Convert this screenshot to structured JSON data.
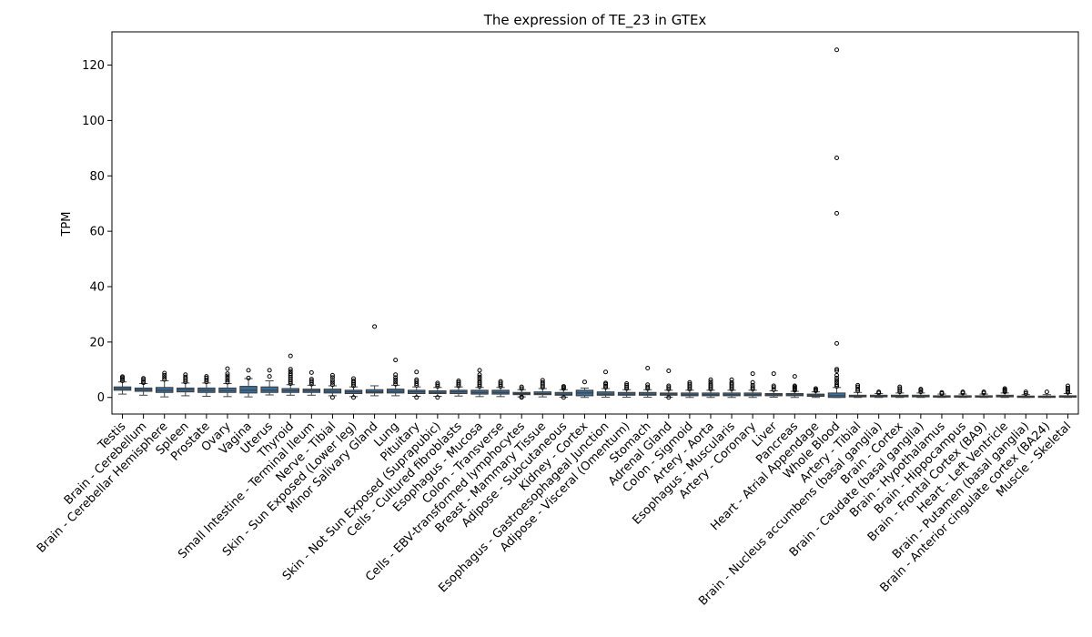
{
  "chart_data": {
    "type": "box",
    "title": "The expression of TE_23 in GTEx",
    "xlabel": "",
    "ylabel": "TPM",
    "ylim": [
      -6,
      132
    ],
    "yticks": [
      0,
      20,
      40,
      60,
      80,
      100,
      120
    ],
    "grid": false,
    "box_color": "#3b6e9a",
    "categories": [
      "Testis",
      "Brain - Cerebellum",
      "Brain - Cerebellar Hemisphere",
      "Spleen",
      "Prostate",
      "Ovary",
      "Vagina",
      "Uterus",
      "Thyroid",
      "Small Intestine - Terminal Ileum",
      "Nerve - Tibial",
      "Skin - Sun Exposed (Lower leg)",
      "Minor Salivary Gland",
      "Lung",
      "Pituitary",
      "Skin - Not Sun Exposed (Suprapubic)",
      "Cells - Cultured fibroblasts",
      "Esophagus - Mucosa",
      "Colon - Transverse",
      "Cells - EBV-transformed lymphocytes",
      "Breast - Mammary Tissue",
      "Adipose - Subcutaneous",
      "Kidney - Cortex",
      "Esophagus - Gastroesophageal Junction",
      "Adipose - Visceral (Omentum)",
      "Stomach",
      "Adrenal Gland",
      "Colon - Sigmoid",
      "Artery - Aorta",
      "Esophagus - Muscularis",
      "Artery - Coronary",
      "Liver",
      "Pancreas",
      "Heart - Atrial Appendage",
      "Whole Blood",
      "Artery - Tibial",
      "Brain - Nucleus accumbens (basal ganglia)",
      "Brain - Cortex",
      "Brain - Caudate (basal ganglia)",
      "Brain - Hypothalamus",
      "Brain - Hippocampus",
      "Brain - Frontal Cortex (BA9)",
      "Heart - Left Ventricle",
      "Brain - Putamen (basal ganglia)",
      "Brain - Anterior cingulate cortex (BA24)",
      "Muscle - Skeletal"
    ],
    "boxes": [
      {
        "q1": 2.6,
        "median": 3.2,
        "q3": 3.8,
        "whislo": 1.2,
        "whishi": 5.6,
        "fliers": [
          6.0,
          6.6,
          7.1,
          7.5
        ]
      },
      {
        "q1": 2.2,
        "median": 2.8,
        "q3": 3.4,
        "whislo": 0.8,
        "whishi": 5.0,
        "fliers": [
          5.3,
          5.8,
          6.4,
          6.9
        ]
      },
      {
        "q1": 1.8,
        "median": 2.6,
        "q3": 3.6,
        "whislo": 0.2,
        "whishi": 6.0,
        "fliers": [
          6.5,
          7.2,
          8.0,
          8.8
        ]
      },
      {
        "q1": 2.0,
        "median": 2.8,
        "q3": 3.4,
        "whislo": 0.6,
        "whishi": 5.2,
        "fliers": [
          5.6,
          6.2,
          6.8,
          7.4,
          8.2
        ]
      },
      {
        "q1": 1.8,
        "median": 2.6,
        "q3": 3.4,
        "whislo": 0.4,
        "whishi": 5.2,
        "fliers": [
          5.6,
          6.3,
          7.0,
          7.6
        ]
      },
      {
        "q1": 1.8,
        "median": 2.5,
        "q3": 3.4,
        "whislo": 0.3,
        "whishi": 5.0,
        "fliers": [
          5.5,
          6.2,
          7.0,
          7.8,
          8.6,
          10.4
        ]
      },
      {
        "q1": 1.6,
        "median": 2.6,
        "q3": 4.0,
        "whislo": 0.2,
        "whishi": 6.8,
        "fliers": [
          7.0,
          9.8
        ]
      },
      {
        "q1": 1.8,
        "median": 2.6,
        "q3": 3.8,
        "whislo": 0.9,
        "whishi": 6.0,
        "fliers": [
          7.6,
          9.8
        ]
      },
      {
        "q1": 1.8,
        "median": 2.4,
        "q3": 3.2,
        "whislo": 0.8,
        "whishi": 4.6,
        "fliers": [
          5.0,
          5.6,
          6.2,
          6.8,
          7.4,
          8.0,
          8.6,
          9.4,
          10.2,
          15.0
        ]
      },
      {
        "q1": 1.8,
        "median": 2.4,
        "q3": 3.0,
        "whislo": 0.8,
        "whishi": 4.4,
        "fliers": [
          4.8,
          5.4,
          6.0,
          6.6,
          9.0
        ]
      },
      {
        "q1": 1.6,
        "median": 2.2,
        "q3": 3.0,
        "whislo": 0.6,
        "whishi": 4.2,
        "fliers": [
          4.6,
          5.4,
          6.2,
          7.2,
          8.0,
          0.0
        ]
      },
      {
        "q1": 1.4,
        "median": 2.0,
        "q3": 2.6,
        "whislo": 0.3,
        "whishi": 3.8,
        "fliers": [
          4.2,
          4.8,
          5.4,
          6.0,
          6.8,
          0.0
        ]
      },
      {
        "q1": 1.6,
        "median": 2.0,
        "q3": 2.8,
        "whislo": 0.6,
        "whishi": 4.2,
        "fliers": [
          25.6
        ]
      },
      {
        "q1": 1.6,
        "median": 2.2,
        "q3": 3.0,
        "whislo": 0.6,
        "whishi": 4.4,
        "fliers": [
          4.8,
          5.6,
          6.4,
          7.2,
          8.2,
          13.5
        ]
      },
      {
        "q1": 1.4,
        "median": 2.0,
        "q3": 2.6,
        "whislo": 0.4,
        "whishi": 3.8,
        "fliers": [
          4.4,
          5.0,
          5.8,
          6.4,
          9.2,
          0.0
        ]
      },
      {
        "q1": 1.4,
        "median": 1.8,
        "q3": 2.4,
        "whislo": 0.4,
        "whishi": 3.6,
        "fliers": [
          4.0,
          4.6,
          5.2,
          0.0
        ]
      },
      {
        "q1": 1.4,
        "median": 2.0,
        "q3": 2.6,
        "whislo": 0.5,
        "whishi": 3.8,
        "fliers": [
          4.2,
          4.8,
          5.4,
          6.0
        ]
      },
      {
        "q1": 1.2,
        "median": 1.8,
        "q3": 2.6,
        "whislo": 0.3,
        "whishi": 3.6,
        "fliers": [
          4.0,
          4.6,
          5.2,
          5.8,
          6.6,
          7.4,
          8.2,
          9.8
        ]
      },
      {
        "q1": 1.2,
        "median": 1.8,
        "q3": 2.6,
        "whislo": 0.3,
        "whishi": 3.6,
        "fliers": [
          4.0,
          4.6,
          5.2,
          5.8
        ]
      },
      {
        "q1": 1.0,
        "median": 1.4,
        "q3": 1.8,
        "whislo": 0.2,
        "whishi": 2.8,
        "fliers": [
          3.2,
          3.8,
          0.0,
          0.2
        ]
      },
      {
        "q1": 1.0,
        "median": 1.4,
        "q3": 2.0,
        "whislo": 0.2,
        "whishi": 3.2,
        "fliers": [
          3.6,
          4.2,
          4.8,
          5.4,
          6.2
        ]
      },
      {
        "q1": 0.8,
        "median": 1.2,
        "q3": 1.8,
        "whislo": 0.1,
        "whishi": 2.8,
        "fliers": [
          3.2,
          3.6,
          4.0,
          0.0
        ]
      },
      {
        "q1": 0.6,
        "median": 1.6,
        "q3": 2.6,
        "whislo": 0.0,
        "whishi": 3.4,
        "fliers": [
          5.6
        ]
      },
      {
        "q1": 0.8,
        "median": 1.2,
        "q3": 2.0,
        "whislo": 0.1,
        "whishi": 3.2,
        "fliers": [
          3.6,
          4.2,
          4.8,
          5.2,
          9.2
        ]
      },
      {
        "q1": 0.8,
        "median": 1.2,
        "q3": 1.8,
        "whislo": 0.1,
        "whishi": 2.8,
        "fliers": [
          3.2,
          3.8,
          4.4,
          5.0
        ]
      },
      {
        "q1": 0.8,
        "median": 1.2,
        "q3": 1.8,
        "whislo": 0.1,
        "whishi": 2.8,
        "fliers": [
          3.2,
          3.8,
          4.6,
          10.6
        ]
      },
      {
        "q1": 0.8,
        "median": 1.2,
        "q3": 1.6,
        "whislo": 0.1,
        "whishi": 2.6,
        "fliers": [
          3.0,
          3.6,
          4.2,
          9.6,
          0.0
        ]
      },
      {
        "q1": 0.6,
        "median": 1.0,
        "q3": 1.6,
        "whislo": 0.0,
        "whishi": 2.6,
        "fliers": [
          3.0,
          3.6,
          4.2,
          4.8,
          5.4
        ]
      },
      {
        "q1": 0.6,
        "median": 1.0,
        "q3": 1.6,
        "whislo": 0.0,
        "whishi": 2.6,
        "fliers": [
          3.0,
          3.6,
          4.2,
          4.8,
          5.6,
          6.4
        ]
      },
      {
        "q1": 0.6,
        "median": 1.0,
        "q3": 1.6,
        "whislo": 0.0,
        "whishi": 2.6,
        "fliers": [
          3.0,
          3.6,
          4.2,
          4.8,
          5.4,
          6.4
        ]
      },
      {
        "q1": 0.6,
        "median": 1.0,
        "q3": 1.6,
        "whislo": 0.0,
        "whishi": 2.6,
        "fliers": [
          3.0,
          3.6,
          4.4,
          5.4,
          8.6
        ]
      },
      {
        "q1": 0.6,
        "median": 1.0,
        "q3": 1.4,
        "whislo": 0.1,
        "whishi": 2.4,
        "fliers": [
          2.8,
          3.6,
          4.2,
          8.6
        ]
      },
      {
        "q1": 0.6,
        "median": 1.0,
        "q3": 1.4,
        "whislo": 0.0,
        "whishi": 2.2,
        "fliers": [
          2.6,
          3.0,
          3.4,
          3.8,
          4.2,
          7.6
        ]
      },
      {
        "q1": 0.4,
        "median": 0.8,
        "q3": 1.2,
        "whislo": 0.0,
        "whishi": 2.0,
        "fliers": [
          2.4,
          2.8,
          3.2
        ]
      },
      {
        "q1": 0.0,
        "median": 0.6,
        "q3": 1.6,
        "whislo": 0.0,
        "whishi": 3.6,
        "fliers": [
          4.0,
          4.6,
          5.4,
          6.2,
          7.0,
          8.0,
          9.6,
          10.2,
          19.5,
          66.5,
          86.5,
          125.5
        ]
      },
      {
        "q1": 0.2,
        "median": 0.4,
        "q3": 0.8,
        "whislo": 0.0,
        "whishi": 1.8,
        "fliers": [
          2.4,
          3.0,
          3.8,
          4.4
        ]
      },
      {
        "q1": 0.2,
        "median": 0.4,
        "q3": 0.8,
        "whislo": 0.0,
        "whishi": 1.4,
        "fliers": [
          1.6,
          2.0
        ]
      },
      {
        "q1": 0.2,
        "median": 0.4,
        "q3": 0.8,
        "whislo": 0.0,
        "whishi": 1.6,
        "fliers": [
          2.0,
          2.6,
          3.2,
          3.8
        ]
      },
      {
        "q1": 0.2,
        "median": 0.4,
        "q3": 0.8,
        "whislo": 0.0,
        "whishi": 1.6,
        "fliers": [
          2.0,
          2.6,
          3.0
        ]
      },
      {
        "q1": 0.2,
        "median": 0.4,
        "q3": 0.6,
        "whislo": 0.0,
        "whishi": 1.2,
        "fliers": [
          1.4,
          1.8
        ]
      },
      {
        "q1": 0.2,
        "median": 0.3,
        "q3": 0.6,
        "whislo": 0.0,
        "whishi": 1.2,
        "fliers": [
          1.6,
          2.0
        ]
      },
      {
        "q1": 0.2,
        "median": 0.3,
        "q3": 0.6,
        "whislo": 0.0,
        "whishi": 1.2,
        "fliers": [
          1.6,
          2.0
        ]
      },
      {
        "q1": 0.2,
        "median": 0.4,
        "q3": 0.8,
        "whislo": 0.0,
        "whishi": 1.6,
        "fliers": [
          2.0,
          2.4,
          2.8,
          3.2
        ]
      },
      {
        "q1": 0.1,
        "median": 0.3,
        "q3": 0.5,
        "whislo": 0.0,
        "whishi": 1.0,
        "fliers": [
          1.4,
          2.0
        ]
      },
      {
        "q1": 0.1,
        "median": 0.3,
        "q3": 0.5,
        "whislo": 0.0,
        "whishi": 1.0,
        "fliers": [
          2.0
        ]
      },
      {
        "q1": 0.1,
        "median": 0.3,
        "q3": 0.6,
        "whislo": 0.0,
        "whishi": 1.4,
        "fliers": [
          1.8,
          2.2,
          2.8,
          3.4,
          4.2
        ]
      }
    ]
  }
}
